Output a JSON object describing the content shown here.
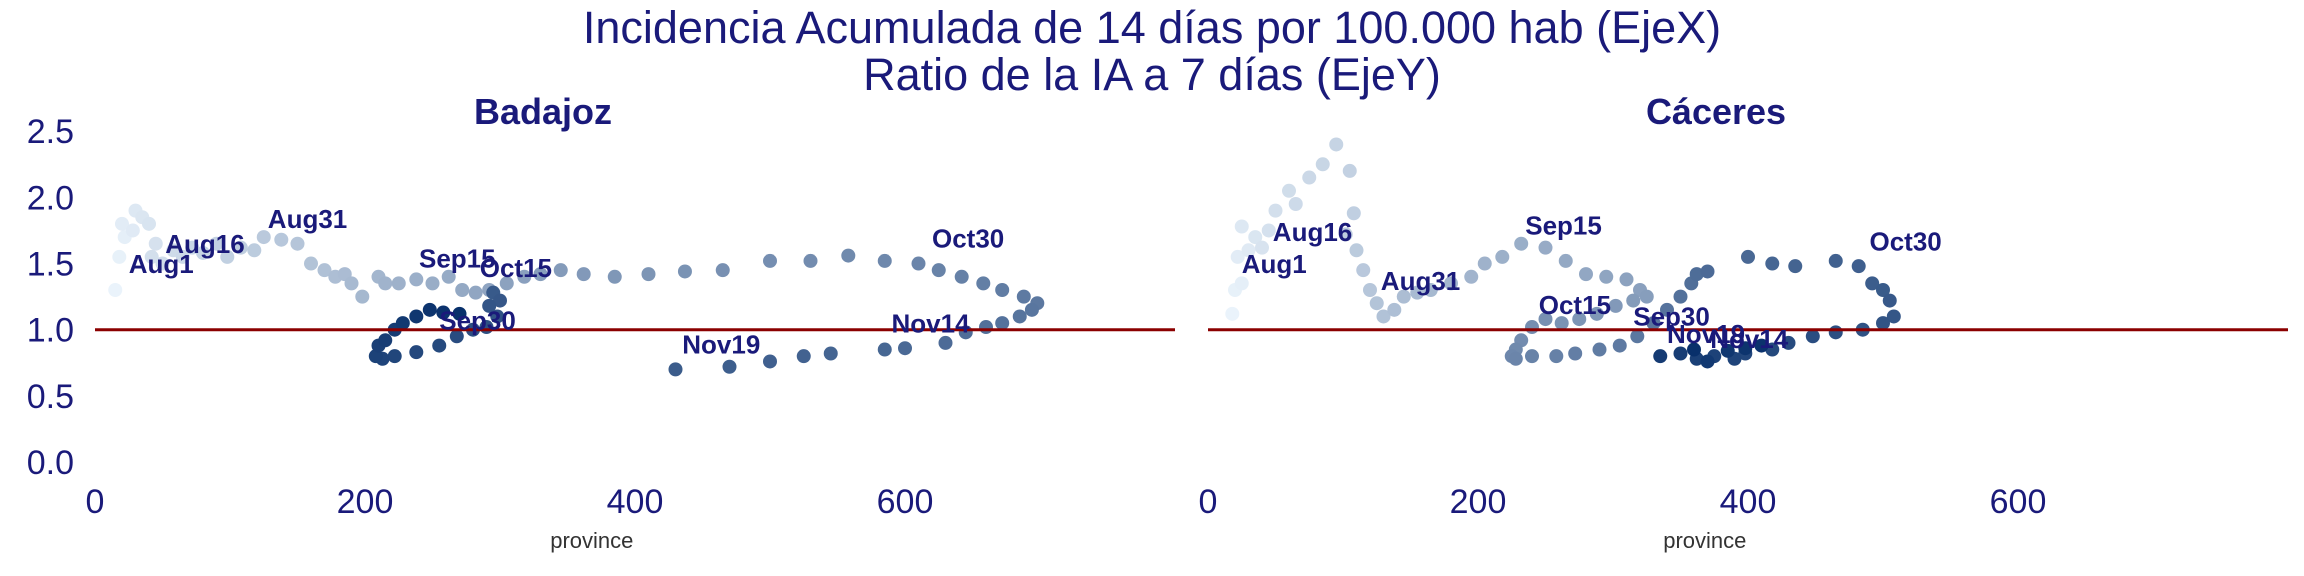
{
  "title_lines": [
    "Incidencia Acumulada de 14 días por 100.000 hab (EjeX)",
    "Ratio de la IA a 7 días (EjeY)"
  ],
  "colors": {
    "title": "#1a1a7a",
    "reference_line": "#8b0000",
    "scale_light": "#eaf3fb",
    "scale_dark": "#08306b"
  },
  "chart_data": [
    {
      "type": "scatter",
      "title": "Badajoz",
      "xlabel": "province",
      "ylabel": "",
      "xlim": [
        0,
        800
      ],
      "ylim": [
        0,
        2.6
      ],
      "xticks": [
        0,
        200,
        400,
        600
      ],
      "yticks": [
        "0.0",
        "0.5",
        "1.0",
        "1.5",
        "2.0",
        "2.5"
      ],
      "hline": 1.0,
      "grid": false,
      "color_scale": "sequential blue, light to dark by date",
      "points": [
        [
          15,
          1.3
        ],
        [
          18,
          1.55
        ],
        [
          22,
          1.7
        ],
        [
          20,
          1.8
        ],
        [
          28,
          1.75
        ],
        [
          30,
          1.9
        ],
        [
          35,
          1.85
        ],
        [
          40,
          1.8
        ],
        [
          45,
          1.65
        ],
        [
          42,
          1.55
        ],
        [
          50,
          1.5
        ],
        [
          58,
          1.6
        ],
        [
          65,
          1.55
        ],
        [
          72,
          1.62
        ],
        [
          80,
          1.58
        ],
        [
          90,
          1.65
        ],
        [
          98,
          1.55
        ],
        [
          108,
          1.62
        ],
        [
          118,
          1.6
        ],
        [
          125,
          1.7
        ],
        [
          138,
          1.68
        ],
        [
          150,
          1.65
        ],
        [
          160,
          1.5
        ],
        [
          170,
          1.45
        ],
        [
          178,
          1.4
        ],
        [
          185,
          1.42
        ],
        [
          190,
          1.35
        ],
        [
          198,
          1.25
        ],
        [
          210,
          1.4
        ],
        [
          215,
          1.35
        ],
        [
          225,
          1.35
        ],
        [
          238,
          1.38
        ],
        [
          250,
          1.35
        ],
        [
          262,
          1.4
        ],
        [
          272,
          1.3
        ],
        [
          282,
          1.28
        ],
        [
          292,
          1.3
        ],
        [
          305,
          1.35
        ],
        [
          318,
          1.4
        ],
        [
          330,
          1.42
        ],
        [
          345,
          1.45
        ],
        [
          362,
          1.42
        ],
        [
          385,
          1.4
        ],
        [
          410,
          1.42
        ],
        [
          437,
          1.44
        ],
        [
          465,
          1.45
        ],
        [
          500,
          1.52
        ],
        [
          530,
          1.52
        ],
        [
          558,
          1.56
        ],
        [
          585,
          1.52
        ],
        [
          610,
          1.5
        ],
        [
          625,
          1.45
        ],
        [
          642,
          1.4
        ],
        [
          658,
          1.35
        ],
        [
          672,
          1.3
        ],
        [
          688,
          1.25
        ],
        [
          698,
          1.2
        ],
        [
          694,
          1.15
        ],
        [
          685,
          1.1
        ],
        [
          672,
          1.05
        ],
        [
          660,
          1.02
        ],
        [
          645,
          0.98
        ],
        [
          630,
          0.9
        ],
        [
          600,
          0.86
        ],
        [
          585,
          0.85
        ],
        [
          545,
          0.82
        ],
        [
          525,
          0.8
        ],
        [
          500,
          0.76
        ],
        [
          470,
          0.72
        ],
        [
          430,
          0.7
        ],
        [
          295,
          1.28
        ],
        [
          300,
          1.22
        ],
        [
          292,
          1.18
        ],
        [
          298,
          1.1
        ],
        [
          290,
          1.02
        ],
        [
          280,
          1.0
        ],
        [
          268,
          0.95
        ],
        [
          255,
          0.88
        ],
        [
          238,
          0.83
        ],
        [
          222,
          0.8
        ],
        [
          213,
          0.78
        ],
        [
          208,
          0.8
        ],
        [
          210,
          0.88
        ],
        [
          215,
          0.92
        ],
        [
          222,
          1.0
        ],
        [
          228,
          1.05
        ],
        [
          238,
          1.1
        ],
        [
          248,
          1.15
        ],
        [
          258,
          1.13
        ],
        [
          270,
          1.12
        ]
      ],
      "annotations": [
        {
          "label": "Aug1",
          "x": 25,
          "y": 1.43
        },
        {
          "label": "Aug16",
          "x": 52,
          "y": 1.58
        },
        {
          "label": "Aug31",
          "x": 128,
          "y": 1.77
        },
        {
          "label": "Sep15",
          "x": 240,
          "y": 1.47
        },
        {
          "label": "Oct15",
          "x": 285,
          "y": 1.4
        },
        {
          "label": "Sep30",
          "x": 255,
          "y": 1.0
        },
        {
          "label": "Oct30",
          "x": 620,
          "y": 1.62
        },
        {
          "label": "Nov14",
          "x": 590,
          "y": 0.98
        },
        {
          "label": "Nov19",
          "x": 435,
          "y": 0.82
        }
      ]
    },
    {
      "type": "scatter",
      "title": "Cáceres",
      "xlabel": "province",
      "ylabel": "",
      "xlim": [
        0,
        800
      ],
      "ylim": [
        0,
        2.6
      ],
      "xticks": [
        0,
        200,
        400,
        600
      ],
      "yticks": [],
      "hline": 1.0,
      "grid": false,
      "color_scale": "sequential blue, light to dark by date",
      "points": [
        [
          18,
          1.12
        ],
        [
          20,
          1.3
        ],
        [
          25,
          1.35
        ],
        [
          22,
          1.55
        ],
        [
          30,
          1.6
        ],
        [
          25,
          1.78
        ],
        [
          35,
          1.7
        ],
        [
          40,
          1.62
        ],
        [
          45,
          1.75
        ],
        [
          50,
          1.9
        ],
        [
          60,
          2.05
        ],
        [
          65,
          1.95
        ],
        [
          75,
          2.15
        ],
        [
          85,
          2.25
        ],
        [
          95,
          2.4
        ],
        [
          105,
          2.2
        ],
        [
          108,
          1.88
        ],
        [
          102,
          1.72
        ],
        [
          110,
          1.6
        ],
        [
          115,
          1.45
        ],
        [
          120,
          1.3
        ],
        [
          125,
          1.2
        ],
        [
          130,
          1.1
        ],
        [
          138,
          1.15
        ],
        [
          145,
          1.25
        ],
        [
          155,
          1.28
        ],
        [
          165,
          1.3
        ],
        [
          180,
          1.35
        ],
        [
          195,
          1.4
        ],
        [
          205,
          1.5
        ],
        [
          218,
          1.55
        ],
        [
          232,
          1.65
        ],
        [
          250,
          1.62
        ],
        [
          265,
          1.52
        ],
        [
          280,
          1.42
        ],
        [
          295,
          1.4
        ],
        [
          310,
          1.38
        ],
        [
          320,
          1.3
        ],
        [
          325,
          1.25
        ],
        [
          315,
          1.22
        ],
        [
          302,
          1.18
        ],
        [
          288,
          1.12
        ],
        [
          275,
          1.08
        ],
        [
          262,
          1.05
        ],
        [
          250,
          1.08
        ],
        [
          240,
          1.02
        ],
        [
          232,
          0.92
        ],
        [
          228,
          0.85
        ],
        [
          225,
          0.8
        ],
        [
          228,
          0.78
        ],
        [
          240,
          0.8
        ],
        [
          258,
          0.8
        ],
        [
          272,
          0.82
        ],
        [
          290,
          0.85
        ],
        [
          305,
          0.88
        ],
        [
          318,
          0.95
        ],
        [
          330,
          1.05
        ],
        [
          340,
          1.15
        ],
        [
          350,
          1.25
        ],
        [
          358,
          1.35
        ],
        [
          362,
          1.42
        ],
        [
          370,
          1.44
        ],
        [
          400,
          1.55
        ],
        [
          418,
          1.5
        ],
        [
          435,
          1.48
        ],
        [
          465,
          1.52
        ],
        [
          482,
          1.48
        ],
        [
          492,
          1.35
        ],
        [
          500,
          1.3
        ],
        [
          505,
          1.22
        ],
        [
          508,
          1.1
        ],
        [
          500,
          1.05
        ],
        [
          485,
          1.0
        ],
        [
          465,
          0.98
        ],
        [
          448,
          0.95
        ],
        [
          430,
          0.9
        ],
        [
          418,
          0.85
        ],
        [
          398,
          0.82
        ],
        [
          390,
          0.78
        ],
        [
          375,
          0.8
        ],
        [
          362,
          0.78
        ],
        [
          350,
          0.82
        ],
        [
          335,
          0.8
        ],
        [
          370,
          0.76
        ],
        [
          385,
          0.84
        ],
        [
          398,
          0.86
        ],
        [
          410,
          0.88
        ],
        [
          360,
          0.85
        ]
      ],
      "annotations": [
        {
          "label": "Aug1",
          "x": 25,
          "y": 1.43
        },
        {
          "label": "Aug16",
          "x": 48,
          "y": 1.67
        },
        {
          "label": "Aug31",
          "x": 128,
          "y": 1.3
        },
        {
          "label": "Sep15",
          "x": 235,
          "y": 1.72
        },
        {
          "label": "Oct15",
          "x": 245,
          "y": 1.12
        },
        {
          "label": "Sep30",
          "x": 315,
          "y": 1.03
        },
        {
          "label": "Oct30",
          "x": 490,
          "y": 1.6
        },
        {
          "label": "Nov19",
          "x": 340,
          "y": 0.9
        },
        {
          "label": "Nov14",
          "x": 372,
          "y": 0.86
        }
      ]
    }
  ]
}
